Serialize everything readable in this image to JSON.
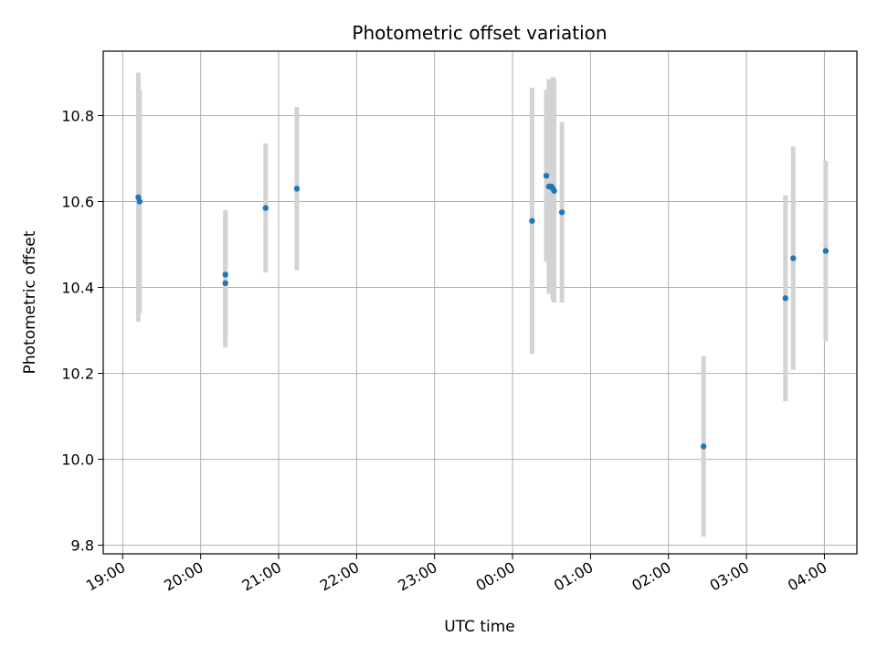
{
  "chart_data": {
    "type": "scatter",
    "title": "Photometric offset variation",
    "xlabel": "UTC time",
    "ylabel": "Photometric offset",
    "xlim": [
      "18:45",
      "04:25"
    ],
    "ylim": [
      9.78,
      10.95
    ],
    "xticks": [
      "19:00",
      "20:00",
      "21:00",
      "22:00",
      "23:00",
      "00:00",
      "01:00",
      "02:00",
      "03:00",
      "04:00"
    ],
    "yticks": [
      "9.8",
      "10.0",
      "10.2",
      "10.4",
      "10.6",
      "10.8"
    ],
    "grid": true,
    "legend": "none",
    "colors": {
      "point": "#1f77b4",
      "errorbar": "#d3d3d3",
      "grid": "#b0b0b0"
    },
    "series": [
      {
        "x": [
          "19:12",
          "19:13",
          "20:19",
          "20:19",
          "20:50",
          "21:14",
          "00:15",
          "00:26",
          "00:28",
          "00:30",
          "00:31",
          "00:32",
          "00:38",
          "02:27",
          "03:30",
          "03:36",
          "04:01"
        ],
        "y": [
          10.61,
          10.6,
          10.43,
          10.41,
          10.585,
          10.63,
          10.555,
          10.66,
          10.635,
          10.635,
          10.63,
          10.625,
          10.575,
          10.03,
          10.375,
          10.468,
          10.485
        ],
        "yerr": [
          0.29,
          0.26,
          0.15,
          0.15,
          0.15,
          0.19,
          0.31,
          0.2,
          0.25,
          0.24,
          0.26,
          0.26,
          0.21,
          0.21,
          0.24,
          0.26,
          0.21
        ]
      }
    ]
  }
}
